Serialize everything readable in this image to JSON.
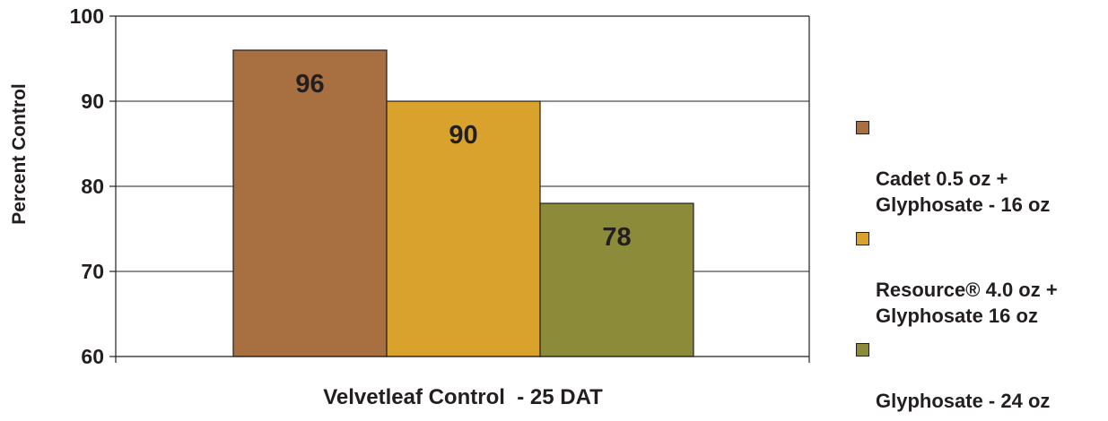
{
  "chart_data": {
    "type": "bar",
    "xlabel": "Velvetleaf Control  - 25 DAT",
    "ylabel": "Percent Control",
    "ylim": [
      60,
      100
    ],
    "yticks": [
      "60",
      "70",
      "80",
      "90",
      "100"
    ],
    "grid": true,
    "legend_position": "right",
    "series": [
      {
        "name": "Cadet 0.5 oz +\nGlyphosate - 16 oz",
        "value": 96,
        "label": "96",
        "color": "#a86f40"
      },
      {
        "name": "Resource® 4.0 oz +\nGlyphosate 16 oz",
        "value": 90,
        "label": "90",
        "color": "#d9a22c"
      },
      {
        "name": "Glyphosate - 24 oz",
        "value": 78,
        "label": "78",
        "color": "#8b8b3a"
      }
    ]
  }
}
